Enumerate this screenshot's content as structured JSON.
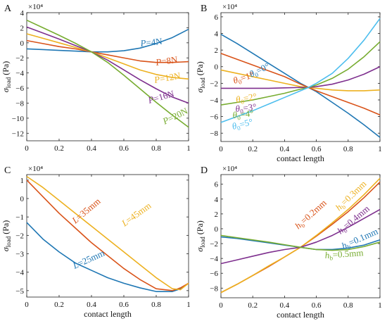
{
  "chart_data": [
    {
      "type": "line",
      "panel_letter": "A",
      "exponent": "×10⁴",
      "ylabel": "σload (Pa)",
      "xlabel": "",
      "xlim": [
        0,
        1
      ],
      "ylim": [
        -13,
        4
      ],
      "xticks": [
        0,
        0.2,
        0.4,
        0.6,
        0.8,
        1
      ],
      "xticklabels": [
        "0",
        "0.2",
        "0.4",
        "0.6",
        "0.8",
        "1"
      ],
      "yticks": [
        -12,
        -10,
        -8,
        -6,
        -4,
        -2,
        0,
        2,
        4
      ],
      "yticklabels": [
        "−12",
        "−10",
        "−8",
        "−6",
        "−4",
        "−2",
        "0",
        "2",
        "4"
      ],
      "x": [
        0,
        0.1,
        0.2,
        0.3,
        0.4,
        0.5,
        0.6,
        0.7,
        0.8,
        0.9,
        1.0
      ],
      "series": [
        {
          "name": "P=4N",
          "color": "#1f77b4",
          "values": [
            -0.8,
            -0.9,
            -1.0,
            -1.1,
            -1.2,
            -1.2,
            -1.05,
            -0.7,
            -0.1,
            0.7,
            1.8
          ]
        },
        {
          "name": "P=8N",
          "color": "#d95319",
          "values": [
            0.3,
            -0.1,
            -0.5,
            -0.8,
            -1.2,
            -1.6,
            -2.0,
            -2.4,
            -2.6,
            -2.6,
            -2.5
          ]
        },
        {
          "name": "P=12N",
          "color": "#edb120",
          "values": [
            1.2,
            0.6,
            0.0,
            -0.6,
            -1.2,
            -2.0,
            -2.8,
            -3.6,
            -4.2,
            -4.6,
            -4.8
          ]
        },
        {
          "name": "P=16N",
          "color": "#7e2f8e",
          "values": [
            2.1,
            1.3,
            0.5,
            -0.35,
            -1.2,
            -2.3,
            -3.6,
            -4.9,
            -6.1,
            -7.2,
            -8.0
          ]
        },
        {
          "name": "P=20N",
          "color": "#77ac30",
          "values": [
            3.0,
            2.0,
            1.0,
            -0.05,
            -1.2,
            -2.6,
            -4.3,
            -6.1,
            -7.9,
            -9.6,
            -11.2
          ]
        }
      ],
      "labels": [
        {
          "text": "P=4N",
          "series": 0
        },
        {
          "text": "P=8N",
          "series": 1
        },
        {
          "text": "P=12N",
          "series": 2
        },
        {
          "text": "P=16N",
          "series": 3
        },
        {
          "text": "P=20N",
          "series": 4
        }
      ]
    },
    {
      "type": "line",
      "panel_letter": "B",
      "exponent": "×10⁴",
      "ylabel": "σload (Pa)",
      "xlabel": "contact length",
      "xlim": [
        0,
        1
      ],
      "ylim": [
        -9,
        6.5
      ],
      "xticks": [
        0,
        0.2,
        0.4,
        0.6,
        0.8,
        1
      ],
      "xticklabels": [
        "0",
        "0.2",
        "0.4",
        "0.6",
        "0.8",
        "1"
      ],
      "yticks": [
        -8,
        -6,
        -4,
        -2,
        0,
        2,
        4,
        6
      ],
      "yticklabels": [
        "−8",
        "−6",
        "−4",
        "−2",
        "0",
        "2",
        "4",
        "6"
      ],
      "x": [
        0,
        0.1,
        0.2,
        0.3,
        0.4,
        0.5,
        0.55,
        0.6,
        0.7,
        0.8,
        0.9,
        1.0
      ],
      "series": [
        {
          "name": "θ0=0°",
          "color": "#1f77b4",
          "values": [
            3.9,
            2.8,
            1.6,
            0.4,
            -0.8,
            -2.0,
            -2.5,
            -3.0,
            -4.3,
            -5.6,
            -7.0,
            -8.5
          ]
        },
        {
          "name": "θ0=1°",
          "color": "#d95319",
          "values": [
            1.6,
            0.9,
            0.2,
            -0.5,
            -1.2,
            -2.1,
            -2.5,
            -2.9,
            -3.6,
            -4.3,
            -5.0,
            -5.8
          ]
        },
        {
          "name": "θ0=2°",
          "color": "#edb120",
          "values": [
            -0.4,
            -0.8,
            -1.2,
            -1.6,
            -2.0,
            -2.4,
            -2.5,
            -2.6,
            -2.8,
            -2.9,
            -2.9,
            -2.8
          ]
        },
        {
          "name": "θ0=3°",
          "color": "#7e2f8e",
          "values": [
            -2.6,
            -2.6,
            -2.6,
            -2.6,
            -2.55,
            -2.5,
            -2.5,
            -2.4,
            -2.1,
            -1.6,
            -0.9,
            0.0
          ]
        },
        {
          "name": "θ0=4°",
          "color": "#77ac30",
          "values": [
            -4.6,
            -4.3,
            -4.0,
            -3.6,
            -3.2,
            -2.7,
            -2.5,
            -2.2,
            -1.4,
            -0.3,
            1.2,
            3.0
          ]
        },
        {
          "name": "θ0=5°",
          "color": "#4dbeee",
          "values": [
            -6.7,
            -6.0,
            -5.3,
            -4.5,
            -3.7,
            -2.9,
            -2.5,
            -2.0,
            -0.8,
            1.0,
            3.2,
            5.8
          ]
        }
      ],
      "labels": [
        {
          "text": "θ0=0°",
          "series": 0
        },
        {
          "text": "θ0=1°",
          "series": 1
        },
        {
          "text": "θ0=2°",
          "series": 2
        },
        {
          "text": "θ0=3°",
          "series": 3
        },
        {
          "text": "θ0=4°",
          "series": 4
        },
        {
          "text": "θ0=5°",
          "series": 5
        }
      ]
    },
    {
      "type": "line",
      "panel_letter": "C",
      "exponent": "×10⁴",
      "ylabel": "σload (Pa)",
      "xlabel": "contact length",
      "xlim": [
        0,
        1
      ],
      "ylim": [
        -5.35,
        1.3
      ],
      "xticks": [
        0,
        0.2,
        0.4,
        0.6,
        0.8,
        1
      ],
      "xticklabels": [
        "0",
        "0.2",
        "0.4",
        "0.6",
        "0.8",
        "1"
      ],
      "yticks": [
        -5,
        -4,
        -3,
        -2,
        -1,
        0,
        1
      ],
      "yticklabels": [
        "−5",
        "−4",
        "−3",
        "−2",
        "−1",
        "0",
        "1"
      ],
      "x": [
        0,
        0.1,
        0.2,
        0.3,
        0.4,
        0.5,
        0.6,
        0.7,
        0.8,
        0.9,
        0.95,
        1.0
      ],
      "series": [
        {
          "name": "L=25mm",
          "color": "#1f77b4",
          "values": [
            -1.3,
            -2.2,
            -2.9,
            -3.5,
            -3.9,
            -4.3,
            -4.6,
            -4.85,
            -5.05,
            -5.05,
            -4.9,
            -4.6
          ]
        },
        {
          "name": "L=35mm",
          "color": "#d95319",
          "values": [
            1.0,
            0.1,
            -0.8,
            -1.6,
            -2.4,
            -3.1,
            -3.8,
            -4.4,
            -4.9,
            -5.0,
            -4.85,
            -4.6
          ]
        },
        {
          "name": "L=45mm",
          "color": "#edb120",
          "values": [
            1.2,
            0.6,
            -0.1,
            -0.8,
            -1.5,
            -2.2,
            -2.9,
            -3.6,
            -4.3,
            -4.9,
            -4.95,
            -4.6
          ]
        }
      ],
      "labels": [
        {
          "text": "L=25mm",
          "series": 0
        },
        {
          "text": "L=35mm",
          "series": 1
        },
        {
          "text": "L=45mm",
          "series": 2
        }
      ]
    },
    {
      "type": "line",
      "panel_letter": "D",
      "exponent": "×10⁴",
      "ylabel": "σload (Pa)",
      "xlabel": "contact length",
      "xlim": [
        0,
        1
      ],
      "ylim": [
        -9.3,
        7.3
      ],
      "xticks": [
        0,
        0.2,
        0.4,
        0.6,
        0.8,
        1
      ],
      "xticklabels": [
        "0",
        "0.2",
        "0.4",
        "0.6",
        "0.8",
        "1"
      ],
      "yticks": [
        -8,
        -6,
        -4,
        -2,
        0,
        2,
        4,
        6
      ],
      "yticklabels": [
        "−8",
        "−6",
        "−4",
        "−2",
        "0",
        "2",
        "4",
        "6"
      ],
      "x": [
        0,
        0.1,
        0.2,
        0.3,
        0.4,
        0.5,
        0.6,
        0.7,
        0.8,
        0.9,
        1.0
      ],
      "series": [
        {
          "name": "hb=0.1mm",
          "color": "#1f77b4",
          "values": [
            -1.1,
            -1.3,
            -1.6,
            -1.9,
            -2.2,
            -2.5,
            -2.8,
            -2.8,
            -2.6,
            -2.2,
            -1.5
          ]
        },
        {
          "name": "hb=0.2mm",
          "color": "#d95319",
          "values": [
            -8.6,
            -7.5,
            -6.3,
            -5.1,
            -3.8,
            -2.5,
            -1.0,
            0.6,
            2.3,
            4.2,
            6.3
          ]
        },
        {
          "name": "hb=0.3mm",
          "color": "#edb120",
          "values": [
            -8.6,
            -7.5,
            -6.3,
            -5.0,
            -3.8,
            -2.5,
            -0.9,
            0.8,
            2.6,
            4.6,
            6.8
          ]
        },
        {
          "name": "hb=0.4mm",
          "color": "#7e2f8e",
          "values": [
            -4.7,
            -4.2,
            -3.7,
            -3.2,
            -2.8,
            -2.5,
            -1.8,
            -0.9,
            0.2,
            1.4,
            2.6
          ]
        },
        {
          "name": "hb=0.5mm",
          "color": "#77ac30",
          "values": [
            -0.9,
            -1.2,
            -1.5,
            -1.8,
            -2.15,
            -2.5,
            -2.8,
            -2.9,
            -2.8,
            -2.4,
            -1.8
          ]
        }
      ],
      "labels": [
        {
          "text": "hb=0.1mm",
          "series": 0
        },
        {
          "text": "hb=0.2mm",
          "series": 1
        },
        {
          "text": "hb=0.3mm",
          "series": 2
        },
        {
          "text": "hb=0.4mm",
          "series": 3
        },
        {
          "text": "hb=0.5mm",
          "series": 4
        }
      ]
    }
  ]
}
